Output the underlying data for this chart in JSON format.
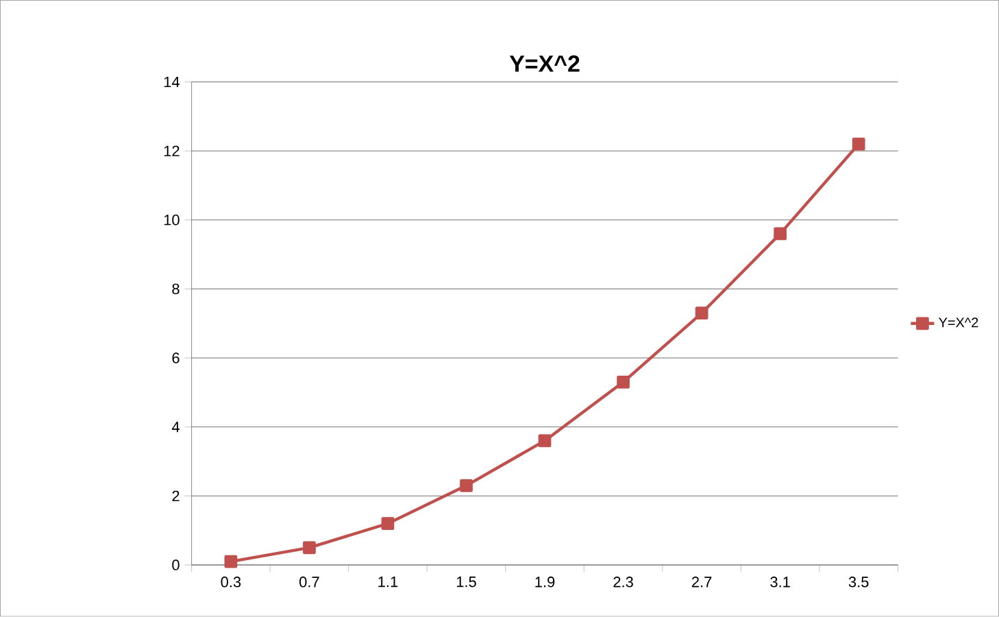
{
  "chart_data": {
    "type": "line",
    "title": "Y=X^2",
    "categories": [
      "0.3",
      "0.7",
      "1.1",
      "1.5",
      "1.9",
      "2.3",
      "2.7",
      "3.1",
      "3.5"
    ],
    "series": [
      {
        "name": "Y=X^2",
        "color": "#c0504d",
        "values": [
          0.1,
          0.5,
          1.2,
          2.3,
          3.6,
          5.3,
          7.3,
          9.6,
          12.2
        ]
      }
    ],
    "ylim": [
      0,
      14
    ],
    "yticks": [
      0,
      2,
      4,
      6,
      8,
      10,
      12,
      14
    ],
    "grid": "y",
    "legend": "right",
    "marker": "square",
    "line_style": "solid"
  }
}
